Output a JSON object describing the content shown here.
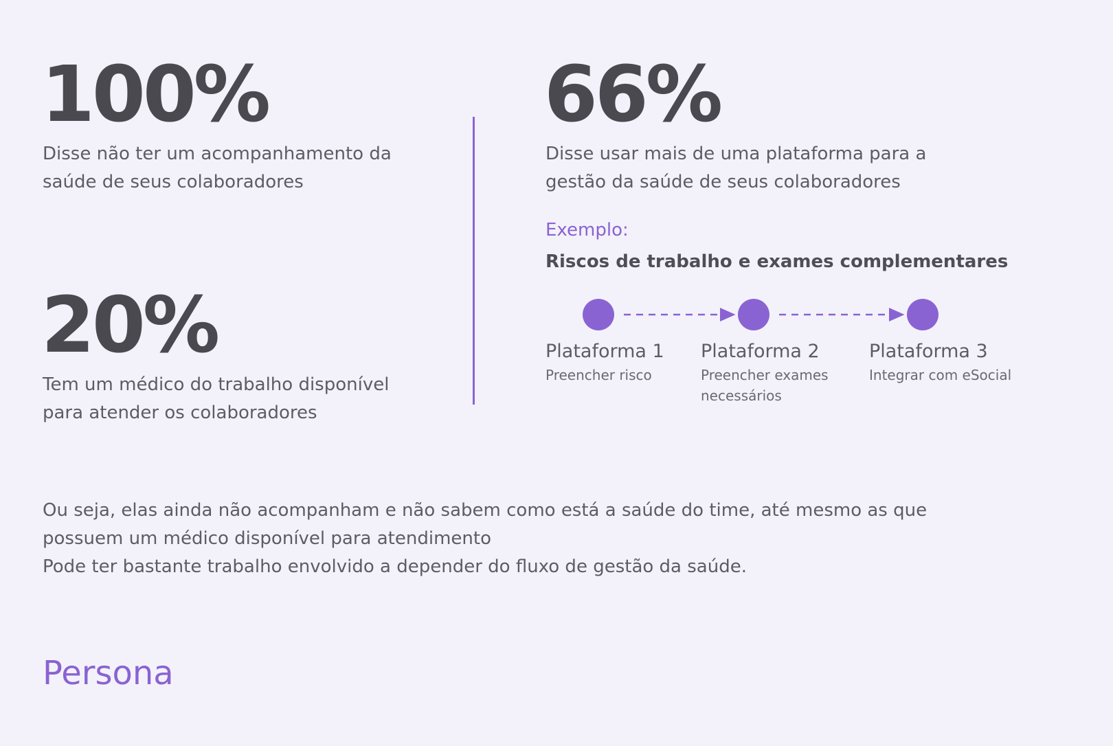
{
  "stats": [
    {
      "value": "100%",
      "lines": [
        "Disse não ter um acompanhamento da",
        "saúde de seus colaboradores"
      ]
    },
    {
      "value": "20%",
      "lines": [
        "Tem um médico do trabalho disponível",
        "para atender os colaboradores"
      ]
    },
    {
      "value": "66%",
      "lines": [
        "Disse usar mais de uma plataforma para a",
        "gestão da saúde de seus colaboradores"
      ]
    }
  ],
  "example": {
    "label": "Exemplo:",
    "title": "Riscos de trabalho e exames complementares",
    "steps": [
      {
        "name": "Plataforma 1",
        "lines": [
          "Preencher risco"
        ]
      },
      {
        "name": "Plataforma 2",
        "lines": [
          "Preencher exames",
          "necessários"
        ]
      },
      {
        "name": "Plataforma 3",
        "lines": [
          "Integrar com eSocial"
        ]
      }
    ]
  },
  "summary": [
    "Ou seja, elas ainda não acompanham e não sabem como está a saúde do time, até mesmo as que",
    "possuem um médico disponível para atendimento",
    "Pode ter bastante trabalho envolvido a depender do fluxo de gestão da saúde."
  ],
  "section_title": "Persona"
}
